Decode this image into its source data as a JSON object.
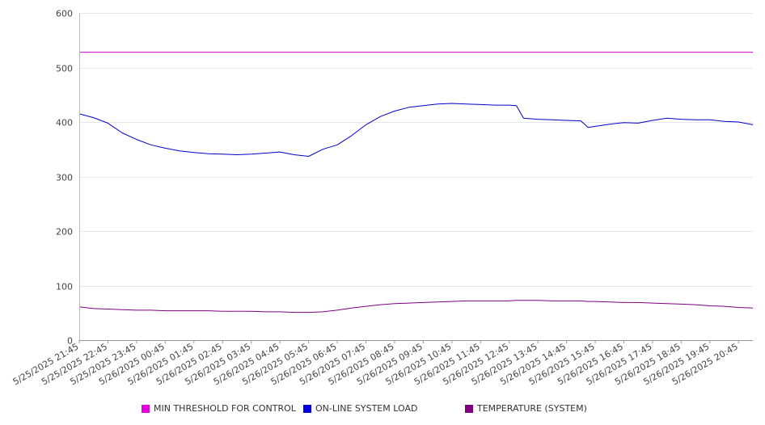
{
  "chart_data": {
    "type": "line",
    "title": "",
    "xlabel": "",
    "ylabel": "",
    "ylim": [
      0,
      600
    ],
    "y_ticks": [
      "0",
      "100",
      "200",
      "300",
      "400",
      "500",
      "600"
    ],
    "grid": "horizontal",
    "legend_position": "bottom",
    "x_tick_labels": [
      "5/25/2025 21:45",
      "5/25/2025 22:45",
      "5/25/2025 23:45",
      "5/26/2025 00:45",
      "5/26/2025 01:45",
      "5/26/2025 02:45",
      "5/26/2025 03:45",
      "5/26/2025 04:45",
      "5/26/2025 05:45",
      "5/26/2025 06:45",
      "5/26/2025 07:45",
      "5/26/2025 08:45",
      "5/26/2025 09:45",
      "5/26/2025 10:45",
      "5/26/2025 11:45",
      "5/26/2025 12:45",
      "5/26/2025 13:45",
      "5/26/2025 14:45",
      "5/26/2025 15:45",
      "5/26/2025 16:45",
      "5/26/2025 17:45",
      "5/26/2025 18:45",
      "5/26/2025 19:45",
      "5/26/2025 20:45"
    ],
    "x": [
      "5/25/2025 21:45",
      "5/25/2025 22:15",
      "5/25/2025 22:45",
      "5/25/2025 23:15",
      "5/25/2025 23:45",
      "5/26/2025 00:15",
      "5/26/2025 00:45",
      "5/26/2025 01:15",
      "5/26/2025 01:45",
      "5/26/2025 02:15",
      "5/26/2025 02:45",
      "5/26/2025 03:15",
      "5/26/2025 03:45",
      "5/26/2025 04:15",
      "5/26/2025 04:45",
      "5/26/2025 05:15",
      "5/26/2025 05:45",
      "5/26/2025 06:15",
      "5/26/2025 06:45",
      "5/26/2025 07:15",
      "5/26/2025 07:45",
      "5/26/2025 08:15",
      "5/26/2025 08:45",
      "5/26/2025 09:15",
      "5/26/2025 09:45",
      "5/26/2025 10:15",
      "5/26/2025 10:45",
      "5/26/2025 11:15",
      "5/26/2025 11:45",
      "5/26/2025 12:15",
      "5/26/2025 12:45",
      "5/26/2025 13:00",
      "5/26/2025 13:15",
      "5/26/2025 13:45",
      "5/26/2025 14:15",
      "5/26/2025 14:45",
      "5/26/2025 15:15",
      "5/26/2025 15:30",
      "5/26/2025 15:45",
      "5/26/2025 16:15",
      "5/26/2025 16:45",
      "5/26/2025 17:15",
      "5/26/2025 17:45",
      "5/26/2025 18:15",
      "5/26/2025 18:45",
      "5/26/2025 19:15",
      "5/26/2025 19:45",
      "5/26/2025 20:15",
      "5/26/2025 20:45",
      "5/26/2025 21:15"
    ],
    "series": [
      {
        "name": "MIN THRESHOLD FOR CONTROL",
        "color": "#cc00cc",
        "values": [
          528,
          528,
          528,
          528,
          528,
          528,
          528,
          528,
          528,
          528,
          528,
          528,
          528,
          528,
          528,
          528,
          528,
          528,
          528,
          528,
          528,
          528,
          528,
          528,
          528,
          528,
          528,
          528,
          528,
          528,
          528,
          528,
          528,
          528,
          528,
          528,
          528,
          528,
          528,
          528,
          528,
          528,
          528,
          528,
          528,
          528,
          528,
          528,
          528,
          528
        ]
      },
      {
        "name": "ON-LINE SYSTEM LOAD",
        "color": "#0000cc",
        "values": [
          415,
          408,
          398,
          380,
          368,
          358,
          352,
          347,
          344,
          342,
          341,
          340,
          341,
          343,
          345,
          340,
          337,
          350,
          358,
          375,
          395,
          410,
          420,
          427,
          430,
          433,
          434,
          433,
          432,
          431,
          431,
          430,
          407,
          405,
          404,
          403,
          402,
          390,
          392,
          396,
          399,
          398,
          403,
          407,
          405,
          404,
          404,
          401,
          400,
          395
        ]
      },
      {
        "name": "TEMPERATURE (SYSTEM)",
        "color": "#800080",
        "values": [
          61,
          58,
          57,
          56,
          55,
          55,
          54,
          54,
          54,
          54,
          53,
          53,
          53,
          52,
          52,
          51,
          51,
          52,
          55,
          59,
          62,
          65,
          67,
          68,
          69,
          70,
          71,
          72,
          72,
          72,
          72,
          73,
          73,
          73,
          72,
          72,
          72,
          71,
          71,
          70,
          69,
          69,
          68,
          67,
          66,
          65,
          63,
          62,
          60,
          59
        ]
      }
    ]
  }
}
